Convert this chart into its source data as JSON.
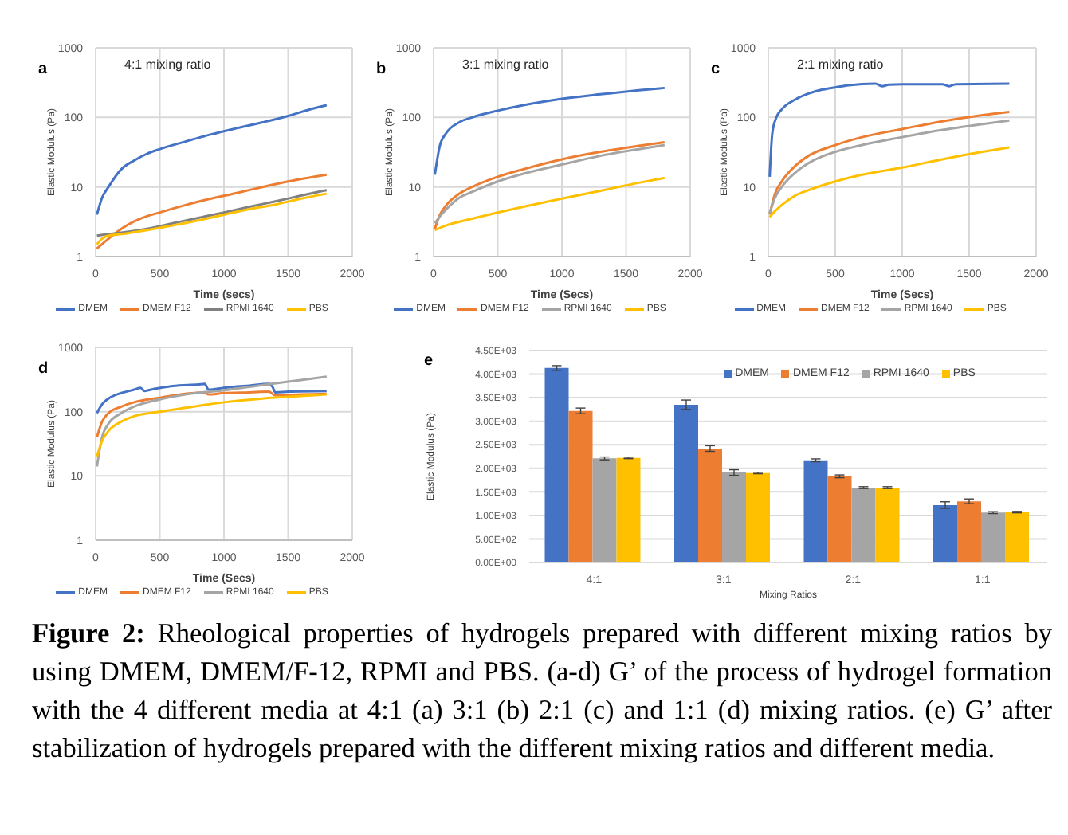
{
  "chart_data": [
    {
      "type": "line",
      "title": "4:1 mixing ratio",
      "annotations": [
        "a"
      ],
      "xlabel": "Time (secs)",
      "ylabel": "Elastic Modulus (Pa)",
      "log": "y",
      "xlim": [
        0,
        2000
      ],
      "xticks": [
        0,
        500,
        1000,
        1500,
        2000
      ],
      "ylim": [
        1,
        1000
      ],
      "yticks": [
        1,
        10,
        100,
        1000
      ],
      "grid": true,
      "legend": "bottom",
      "marker": "none",
      "line_style": "solid",
      "series": [
        {
          "name": "DMEM",
          "color": "#4472c4",
          "x": [
            10,
            50,
            100,
            200,
            300,
            400,
            500,
            700,
            900,
            1100,
            1300,
            1500,
            1700,
            1800
          ],
          "values": [
            4,
            7,
            10,
            18,
            24,
            30,
            35,
            45,
            57,
            70,
            85,
            105,
            135,
            150
          ]
        },
        {
          "name": "DMEM F12",
          "color": "#ed7d31",
          "x": [
            10,
            100,
            200,
            300,
            400,
            500,
            700,
            900,
            1100,
            1300,
            1500,
            1800
          ],
          "values": [
            1.3,
            1.8,
            2.5,
            3.2,
            3.8,
            4.3,
            5.5,
            6.8,
            8.2,
            10,
            12,
            15
          ]
        },
        {
          "name": "RPMI 1640",
          "color": "#808080",
          "x": [
            10,
            100,
            200,
            400,
            600,
            800,
            1000,
            1200,
            1400,
            1600,
            1800
          ],
          "values": [
            2,
            2.1,
            2.2,
            2.5,
            3,
            3.6,
            4.3,
            5.2,
            6.2,
            7.5,
            9
          ]
        },
        {
          "name": "PBS",
          "color": "#ffc000",
          "x": [
            10,
            50,
            100,
            200,
            400,
            600,
            800,
            1000,
            1200,
            1400,
            1600,
            1800
          ],
          "values": [
            1.5,
            1.8,
            2,
            2.1,
            2.4,
            2.8,
            3.3,
            4,
            4.8,
            5.6,
            6.8,
            8
          ]
        }
      ]
    },
    {
      "type": "line",
      "title": "3:1 mixing ratio",
      "annotations": [
        "b"
      ],
      "xlabel": "Time (Secs)",
      "ylabel": "Elastic Modulus (Pa)",
      "log": "y",
      "xlim": [
        0,
        2000
      ],
      "xticks": [
        0,
        500,
        1000,
        1500,
        2000
      ],
      "ylim": [
        1,
        1000
      ],
      "yticks": [
        1,
        10,
        100,
        1000
      ],
      "grid": true,
      "legend": "bottom",
      "marker": "none",
      "line_style": "solid",
      "series": [
        {
          "name": "DMEM",
          "color": "#4472c4",
          "x": [
            10,
            50,
            100,
            200,
            300,
            500,
            700,
            1000,
            1300,
            1600,
            1800
          ],
          "values": [
            15,
            40,
            60,
            85,
            100,
            125,
            150,
            185,
            215,
            245,
            265
          ]
        },
        {
          "name": "DMEM F12",
          "color": "#ed7d31",
          "x": [
            10,
            50,
            100,
            200,
            300,
            500,
            700,
            1000,
            1300,
            1600,
            1800
          ],
          "values": [
            2.5,
            4,
            5.5,
            8,
            10,
            14,
            18,
            25,
            32,
            39,
            44
          ]
        },
        {
          "name": "RPMI 1640",
          "color": "#a5a5a5",
          "x": [
            10,
            50,
            100,
            200,
            300,
            500,
            700,
            1000,
            1300,
            1600,
            1800
          ],
          "values": [
            3,
            3.8,
            4.8,
            7,
            8.5,
            12,
            15.5,
            21,
            28,
            35,
            40
          ]
        },
        {
          "name": "PBS",
          "color": "#ffc000",
          "x": [
            10,
            100,
            300,
            500,
            700,
            1000,
            1300,
            1600,
            1800
          ],
          "values": [
            2.4,
            2.8,
            3.5,
            4.3,
            5.2,
            6.8,
            8.8,
            11.5,
            13.5
          ]
        }
      ]
    },
    {
      "type": "line",
      "title": "2:1 mixing ratio",
      "annotations": [
        "c"
      ],
      "xlabel": "Time (Secs)",
      "ylabel": "Elastic Modulus (Pa)",
      "log": "y",
      "xlim": [
        0,
        2000
      ],
      "xticks": [
        0,
        500,
        1000,
        1500,
        2000
      ],
      "ylim": [
        1,
        1000
      ],
      "yticks": [
        1,
        10,
        100,
        1000
      ],
      "grid": true,
      "legend": "bottom",
      "marker": "none",
      "line_style": "solid",
      "series": [
        {
          "name": "DMEM",
          "color": "#4472c4",
          "x": [
            10,
            30,
            60,
            100,
            200,
            300,
            400,
            500,
            600,
            800,
            850,
            900,
            1000,
            1300,
            1350,
            1400,
            1800
          ],
          "values": [
            14,
            60,
            100,
            130,
            180,
            220,
            250,
            270,
            290,
            305,
            280,
            295,
            300,
            300,
            280,
            300,
            305
          ]
        },
        {
          "name": "DMEM F12",
          "color": "#ed7d31",
          "x": [
            10,
            50,
            100,
            200,
            300,
            500,
            700,
            1000,
            1300,
            1600,
            1800
          ],
          "values": [
            4,
            8,
            12,
            20,
            28,
            40,
            52,
            68,
            88,
            108,
            120
          ]
        },
        {
          "name": "RPMI 1640",
          "color": "#a5a5a5",
          "x": [
            10,
            50,
            100,
            200,
            300,
            500,
            700,
            1000,
            1300,
            1600,
            1800
          ],
          "values": [
            4.2,
            7,
            10,
            16,
            22,
            32,
            40,
            52,
            66,
            80,
            90
          ]
        },
        {
          "name": "PBS",
          "color": "#ffc000",
          "x": [
            10,
            50,
            100,
            200,
            300,
            500,
            700,
            1000,
            1300,
            1600,
            1800
          ],
          "values": [
            3.7,
            4.5,
            5.5,
            7.5,
            9,
            12,
            15,
            19,
            25,
            32,
            37
          ]
        }
      ]
    },
    {
      "type": "line",
      "annotations": [
        "d"
      ],
      "xlabel": "Time (Secs)",
      "ylabel": "Elastic Modulus (Pa)",
      "log": "y",
      "xlim": [
        0,
        2000
      ],
      "xticks": [
        0,
        500,
        1000,
        1500,
        2000
      ],
      "ylim": [
        1,
        1000
      ],
      "yticks": [
        1,
        10,
        100,
        1000
      ],
      "grid": true,
      "legend": "bottom",
      "marker": "none",
      "line_style": "solid",
      "series": [
        {
          "name": "DMEM",
          "color": "#4472c4",
          "x": [
            10,
            50,
            100,
            200,
            300,
            350,
            380,
            450,
            600,
            800,
            850,
            880,
            1000,
            1200,
            1350,
            1380,
            1400,
            1500,
            1800
          ],
          "values": [
            95,
            130,
            160,
            195,
            220,
            235,
            210,
            225,
            250,
            265,
            270,
            220,
            235,
            255,
            270,
            240,
            200,
            205,
            210
          ]
        },
        {
          "name": "DMEM F12",
          "color": "#ed7d31",
          "x": [
            10,
            50,
            100,
            200,
            300,
            500,
            700,
            850,
            880,
            1000,
            1200,
            1350,
            1400,
            1600,
            1800
          ],
          "values": [
            40,
            70,
            95,
            120,
            140,
            165,
            190,
            200,
            185,
            195,
            200,
            205,
            180,
            185,
            190
          ]
        },
        {
          "name": "RPMI 1640",
          "color": "#a5a5a5",
          "x": [
            10,
            50,
            100,
            200,
            300,
            500,
            700,
            1000,
            1300,
            1600,
            1800
          ],
          "values": [
            14,
            40,
            65,
            95,
            120,
            155,
            185,
            215,
            260,
            310,
            350
          ]
        },
        {
          "name": "PBS",
          "color": "#ffc000",
          "x": [
            10,
            50,
            100,
            200,
            300,
            500,
            700,
            1000,
            1300,
            1600,
            1800
          ],
          "values": [
            20,
            35,
            50,
            70,
            85,
            100,
            115,
            140,
            160,
            175,
            185
          ]
        }
      ]
    },
    {
      "type": "bar",
      "annotations": [
        "e",
        "Figure 2: Rheological properties of hydrogels prepared with different mixing ratios by using DMEM, DMEM/F-12, RPMI and PBS. (a-d) G’ of the process of hydrogel formation with the 4 different media at 4:1 (a) 3:1 (b) 2:1 (c) and 1:1 (d) mixing ratios. (e) G’ after stabilization of hydrogels prepared with the different mixing ratios and different media."
      ],
      "xlabel": "Mixing Ratios",
      "ylabel": "Elastic Modulus (Pa)",
      "categories": [
        "4:1",
        "3:1",
        "2:1",
        "1:1"
      ],
      "ylim": [
        0,
        4500
      ],
      "yticks": [
        {
          "value": 0,
          "label": "0.00E+00"
        },
        {
          "value": 500,
          "label": "5.00E+02"
        },
        {
          "value": 1000,
          "label": "1.00E+03"
        },
        {
          "value": 1500,
          "label": "1.50E+03"
        },
        {
          "value": 2000,
          "label": "2.00E+03"
        },
        {
          "value": 2500,
          "label": "2.50E+03"
        },
        {
          "value": 3000,
          "label": "3.00E+03"
        },
        {
          "value": 3500,
          "label": "3.50E+03"
        },
        {
          "value": 4000,
          "label": "4.00E+03"
        },
        {
          "value": 4500,
          "label": "4.50E+03"
        }
      ],
      "grid": "y",
      "legend": "top right",
      "series": [
        {
          "name": "DMEM",
          "color": "#4472c4",
          "values": [
            4130,
            3350,
            2170,
            1220
          ],
          "errors": [
            50,
            100,
            30,
            70
          ]
        },
        {
          "name": "DMEM F12",
          "color": "#ed7d31",
          "values": [
            3220,
            2420,
            1830,
            1300
          ],
          "errors": [
            60,
            60,
            30,
            50
          ]
        },
        {
          "name": "RPMI 1640",
          "color": "#a5a5a5",
          "values": [
            2210,
            1910,
            1590,
            1060
          ],
          "errors": [
            30,
            60,
            20,
            20
          ]
        },
        {
          "name": "PBS",
          "color": "#ffc000",
          "values": [
            2220,
            1900,
            1590,
            1070
          ],
          "errors": [
            15,
            15,
            20,
            15
          ]
        }
      ]
    }
  ]
}
